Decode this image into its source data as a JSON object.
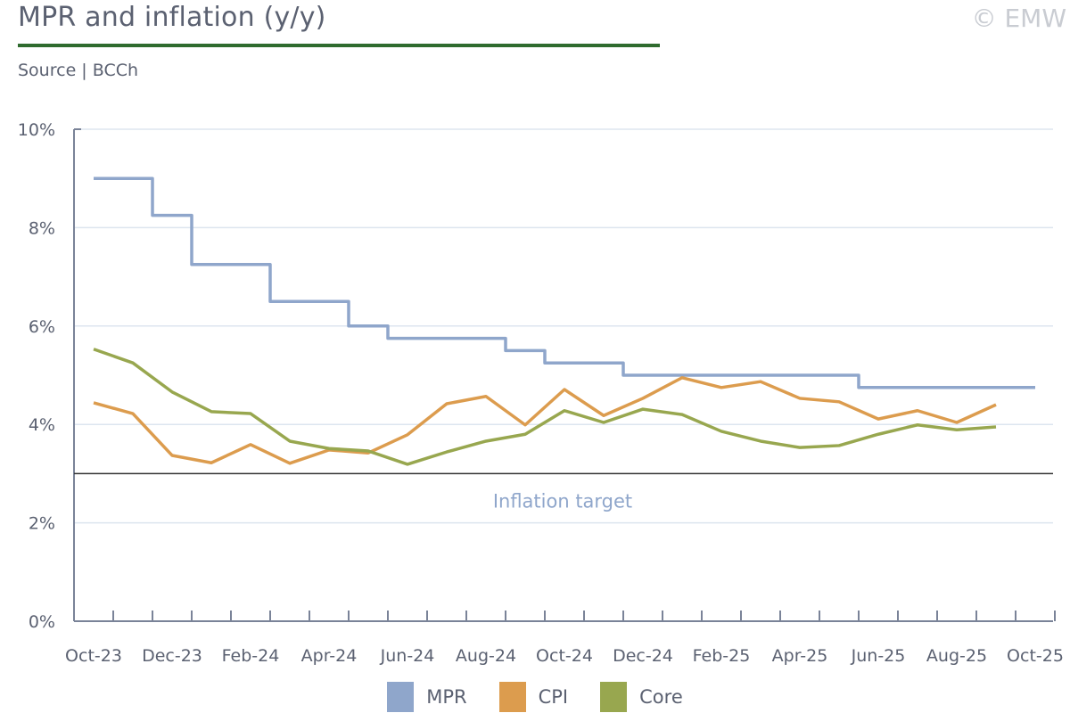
{
  "header": {
    "title": "MPR and inflation (y/y)",
    "source": "Source | BCCh",
    "copyright": "© EMW"
  },
  "colors": {
    "MPR": "#8fa6cb",
    "CPI": "#dc9c4e",
    "Core": "#98a74f",
    "accent": "#2f6b2e",
    "target": "#333333",
    "target_label": "#8fa6cb"
  },
  "chart_data": {
    "type": "line",
    "title": "MPR and inflation (y/y)",
    "xlabel": "",
    "ylabel": "",
    "ylim": [
      0,
      10
    ],
    "yticks": [
      0,
      2,
      4,
      6,
      8,
      10
    ],
    "ytick_labels": [
      "0%",
      "2%",
      "4%",
      "6%",
      "8%",
      "10%"
    ],
    "x": [
      "Oct-23",
      "Nov-23",
      "Dec-23",
      "Jan-24",
      "Feb-24",
      "Mar-24",
      "Apr-24",
      "May-24",
      "Jun-24",
      "Jul-24",
      "Aug-24",
      "Sep-24",
      "Oct-24",
      "Nov-24",
      "Dec-24",
      "Jan-25",
      "Feb-25",
      "Mar-25",
      "Apr-25",
      "May-25",
      "Jun-25",
      "Jul-25",
      "Aug-25",
      "Sep-25",
      "Oct-25"
    ],
    "xtick_labels": [
      "Oct-23",
      "Dec-23",
      "Feb-24",
      "Apr-24",
      "Jun-24",
      "Aug-24",
      "Oct-24",
      "Dec-24",
      "Feb-25",
      "Apr-25",
      "Jun-25",
      "Aug-25",
      "Oct-25"
    ],
    "grid": true,
    "legend": "bottom-center",
    "series": [
      {
        "name": "MPR",
        "style": "step",
        "values": [
          9.0,
          9.0,
          8.25,
          7.25,
          7.25,
          6.5,
          6.5,
          6.0,
          5.75,
          5.75,
          5.75,
          5.5,
          5.25,
          5.25,
          5.0,
          5.0,
          5.0,
          5.0,
          5.0,
          5.0,
          4.75,
          4.75,
          4.75,
          4.75,
          4.75
        ]
      },
      {
        "name": "CPI",
        "style": "line",
        "values": [
          4.44,
          4.22,
          3.37,
          3.22,
          3.59,
          3.21,
          3.48,
          3.42,
          3.79,
          4.42,
          4.57,
          3.99,
          4.71,
          4.18,
          4.53,
          4.95,
          4.75,
          4.87,
          4.53,
          4.46,
          4.11,
          4.28,
          4.04,
          4.4,
          null
        ]
      },
      {
        "name": "Core",
        "style": "line",
        "values": [
          5.53,
          5.25,
          4.66,
          4.26,
          4.22,
          3.66,
          3.51,
          3.46,
          3.19,
          3.44,
          3.66,
          3.8,
          4.28,
          4.04,
          4.31,
          4.2,
          3.86,
          3.66,
          3.53,
          3.57,
          3.8,
          3.99,
          3.89,
          3.95,
          null
        ]
      }
    ],
    "annotations": [
      {
        "text": "Inflation target",
        "y": 3
      }
    ]
  }
}
